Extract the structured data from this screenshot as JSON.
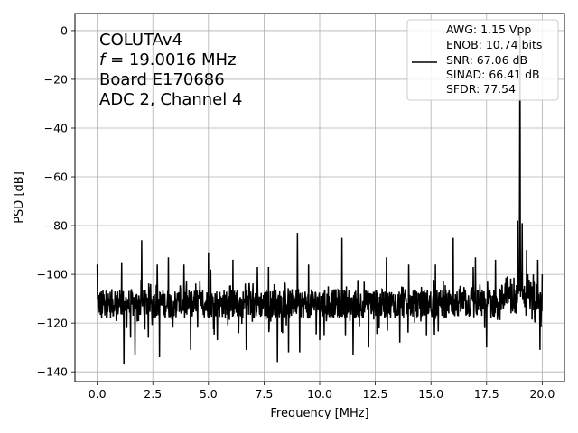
{
  "chart_data": {
    "type": "line",
    "xlabel": "Frequency [MHz]",
    "ylabel": "PSD [dB]",
    "xlim": [
      -1.0,
      21.0
    ],
    "ylim": [
      -144,
      7
    ],
    "x_ticks": [
      0.0,
      2.5,
      5.0,
      7.5,
      10.0,
      12.5,
      15.0,
      17.5,
      20.0
    ],
    "x_tick_labels": [
      "0.0",
      "2.5",
      "5.0",
      "7.5",
      "10.0",
      "12.5",
      "15.0",
      "17.5",
      "20.0"
    ],
    "y_ticks": [
      0,
      -20,
      -40,
      -60,
      -80,
      -100,
      -120,
      -140
    ],
    "y_tick_labels": [
      "0",
      "−20",
      "−40",
      "−60",
      "−80",
      "−100",
      "−120",
      "−140"
    ],
    "grid": true,
    "annotation_lines": [
      "COLUTAv4",
      "f = 19.0016 MHz",
      "Board E170686",
      "ADC 2, Channel 4"
    ],
    "annotation_italic_prefix": "f",
    "annotation_freq_rest": " = 19.0016 MHz",
    "legend_placement": "upper right",
    "legend_lines": [
      "AWG: 1.15 Vpp",
      "ENOB: 10.74 bits",
      "SNR: 67.06 dB",
      "SINAD: 66.41 dB",
      "SFDR: 77.54"
    ],
    "series": [
      {
        "color": "#000000",
        "noise_floor_db": -112,
        "noise_span_db": [
          -125,
          -102
        ],
        "fundamental": {
          "x": 19.0016,
          "y": 0
        },
        "spurs": [
          {
            "x": 0.0,
            "y": -96
          },
          {
            "x": 0.2,
            "y": -118
          },
          {
            "x": 0.8,
            "y": -107
          },
          {
            "x": 1.1,
            "y": -95
          },
          {
            "x": 1.2,
            "y": -137
          },
          {
            "x": 1.5,
            "y": -126
          },
          {
            "x": 1.7,
            "y": -133
          },
          {
            "x": 2.0,
            "y": -86
          },
          {
            "x": 2.3,
            "y": -126
          },
          {
            "x": 2.4,
            "y": -104
          },
          {
            "x": 2.7,
            "y": -96
          },
          {
            "x": 2.8,
            "y": -134
          },
          {
            "x": 3.2,
            "y": -93
          },
          {
            "x": 3.9,
            "y": -96
          },
          {
            "x": 4.2,
            "y": -131
          },
          {
            "x": 5.0,
            "y": -91
          },
          {
            "x": 5.1,
            "y": -98
          },
          {
            "x": 5.4,
            "y": -127
          },
          {
            "x": 6.1,
            "y": -94
          },
          {
            "x": 6.7,
            "y": -131
          },
          {
            "x": 7.2,
            "y": -97
          },
          {
            "x": 7.7,
            "y": -97
          },
          {
            "x": 8.1,
            "y": -136
          },
          {
            "x": 8.6,
            "y": -132
          },
          {
            "x": 9.0,
            "y": -83
          },
          {
            "x": 9.1,
            "y": -132
          },
          {
            "x": 9.5,
            "y": -96
          },
          {
            "x": 10.0,
            "y": -127
          },
          {
            "x": 11.0,
            "y": -85
          },
          {
            "x": 11.5,
            "y": -133
          },
          {
            "x": 12.0,
            "y": -103
          },
          {
            "x": 12.2,
            "y": -130
          },
          {
            "x": 13.0,
            "y": -93
          },
          {
            "x": 13.6,
            "y": -128
          },
          {
            "x": 14.0,
            "y": -96
          },
          {
            "x": 14.8,
            "y": -125
          },
          {
            "x": 15.2,
            "y": -96
          },
          {
            "x": 15.5,
            "y": -117
          },
          {
            "x": 16.0,
            "y": -85
          },
          {
            "x": 16.2,
            "y": -117
          },
          {
            "x": 16.9,
            "y": -97
          },
          {
            "x": 17.0,
            "y": -93
          },
          {
            "x": 17.5,
            "y": -130
          },
          {
            "x": 17.9,
            "y": -94
          },
          {
            "x": 18.6,
            "y": -116
          },
          {
            "x": 18.9,
            "y": -78
          },
          {
            "x": 19.1,
            "y": -79
          },
          {
            "x": 19.3,
            "y": -90
          },
          {
            "x": 19.5,
            "y": -108
          },
          {
            "x": 19.6,
            "y": -100
          },
          {
            "x": 19.8,
            "y": -94
          },
          {
            "x": 19.9,
            "y": -131
          },
          {
            "x": 20.0,
            "y": -100
          }
        ]
      }
    ]
  }
}
